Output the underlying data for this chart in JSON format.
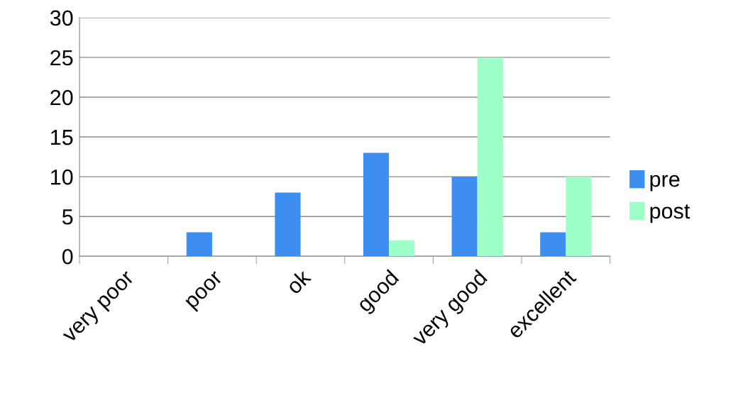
{
  "chart_data": {
    "type": "bar",
    "categories": [
      "very poor",
      "poor",
      "ok",
      "good",
      "very good",
      "excellent"
    ],
    "series": [
      {
        "name": "pre",
        "color": "#3d8ef0",
        "values": [
          0,
          3,
          8,
          13,
          10,
          3
        ]
      },
      {
        "name": "post",
        "color": "#9effc9",
        "values": [
          0,
          0,
          0,
          2,
          25,
          10
        ]
      }
    ],
    "ylim": [
      0,
      30
    ],
    "yticks": [
      0,
      5,
      10,
      15,
      20,
      25,
      30
    ],
    "grid": "y",
    "legend": "right"
  }
}
